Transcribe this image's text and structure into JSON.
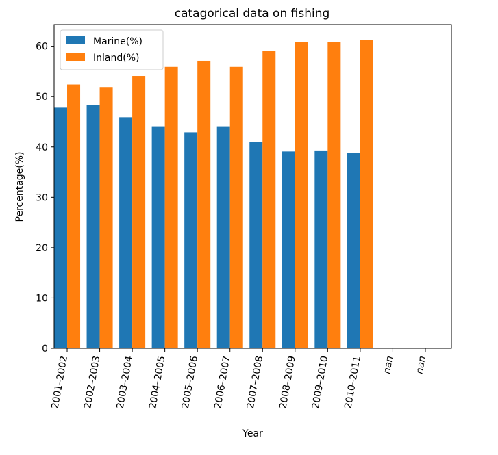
{
  "chart_data": {
    "type": "bar",
    "title": "catagorical data on fishing",
    "xlabel": "Year",
    "ylabel": "Percentage(%)",
    "categories": [
      "2001–2002",
      "2002–2003",
      "2003–2004",
      "2004–2005",
      "2005–2006",
      "2006–2007",
      "2007–2008",
      "2008–2009",
      "2009–2010",
      "2010–2011",
      "nan",
      "nan"
    ],
    "series": [
      {
        "name": "Marine(%)",
        "color": "#1f77b4",
        "values": [
          47.8,
          48.3,
          45.9,
          44.1,
          42.9,
          44.1,
          41.0,
          39.1,
          39.3,
          38.8,
          null,
          null
        ]
      },
      {
        "name": "Inland(%)",
        "color": "#ff7f0e",
        "values": [
          52.4,
          51.9,
          54.1,
          55.9,
          57.1,
          55.9,
          59.0,
          60.9,
          60.9,
          61.2,
          null,
          null
        ]
      }
    ],
    "ylim": [
      0,
      64.3
    ],
    "yticks": [
      0,
      10,
      20,
      30,
      40,
      50,
      60
    ],
    "grid": false,
    "legend_position": "top-left"
  }
}
